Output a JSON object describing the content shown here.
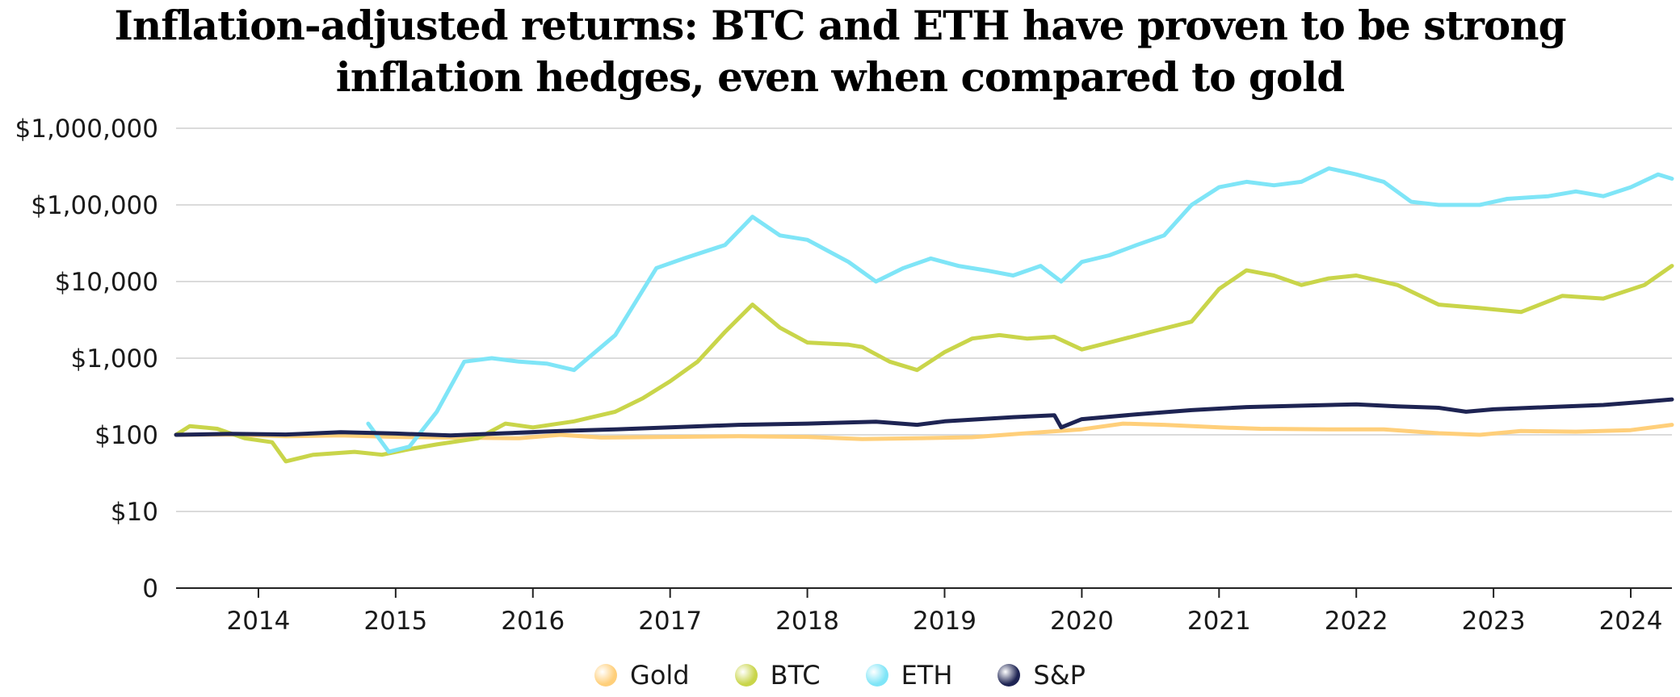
{
  "chart_data": {
    "type": "line",
    "title_lines": [
      "Inflation-adjusted returns: BTC and ETH have proven to be strong",
      "inflation hedges, even when compared to gold"
    ],
    "xlabel": "",
    "ylabel": "",
    "y_scale": "log",
    "y_ticks": [
      {
        "value": 0,
        "label": "0"
      },
      {
        "value": 10,
        "label": "$10"
      },
      {
        "value": 100,
        "label": "$100"
      },
      {
        "value": 1000,
        "label": "$1,000"
      },
      {
        "value": 10000,
        "label": "$10,000"
      },
      {
        "value": 100000,
        "label": "$1,00,000"
      },
      {
        "value": 1000000,
        "label": "$1,000,000"
      }
    ],
    "x_ticks": [
      "2014",
      "2015",
      "2016",
      "2017",
      "2018",
      "2019",
      "2020",
      "2021",
      "2022",
      "2023",
      "2024"
    ],
    "xlim": [
      2013.4,
      2024.3
    ],
    "grid": true,
    "legend_position": "bottom",
    "series": [
      {
        "name": "Gold",
        "color": "#ffcf7a",
        "points": [
          [
            2013.4,
            100
          ],
          [
            2013.8,
            101
          ],
          [
            2014.2,
            96
          ],
          [
            2014.6,
            98
          ],
          [
            2015.0,
            94
          ],
          [
            2015.4,
            92
          ],
          [
            2015.9,
            90
          ],
          [
            2016.2,
            100
          ],
          [
            2016.5,
            92
          ],
          [
            2017.0,
            94
          ],
          [
            2017.5,
            96
          ],
          [
            2018.0,
            94
          ],
          [
            2018.4,
            88
          ],
          [
            2018.8,
            90
          ],
          [
            2019.2,
            93
          ],
          [
            2019.6,
            105
          ],
          [
            2020.0,
            118
          ],
          [
            2020.3,
            140
          ],
          [
            2020.6,
            135
          ],
          [
            2021.0,
            125
          ],
          [
            2021.3,
            120
          ],
          [
            2021.8,
            118
          ],
          [
            2022.2,
            118
          ],
          [
            2022.6,
            105
          ],
          [
            2022.9,
            100
          ],
          [
            2023.2,
            112
          ],
          [
            2023.6,
            110
          ],
          [
            2024.0,
            115
          ],
          [
            2024.3,
            135
          ]
        ]
      },
      {
        "name": "BTC",
        "color": "#c9d54a",
        "points": [
          [
            2013.4,
            100
          ],
          [
            2013.5,
            130
          ],
          [
            2013.7,
            120
          ],
          [
            2013.9,
            90
          ],
          [
            2014.1,
            80
          ],
          [
            2014.2,
            45
          ],
          [
            2014.4,
            55
          ],
          [
            2014.7,
            60
          ],
          [
            2014.9,
            55
          ],
          [
            2015.1,
            65
          ],
          [
            2015.3,
            75
          ],
          [
            2015.6,
            90
          ],
          [
            2015.8,
            140
          ],
          [
            2016.0,
            125
          ],
          [
            2016.3,
            150
          ],
          [
            2016.6,
            200
          ],
          [
            2016.8,
            300
          ],
          [
            2017.0,
            500
          ],
          [
            2017.2,
            900
          ],
          [
            2017.4,
            2200
          ],
          [
            2017.6,
            5000
          ],
          [
            2017.8,
            2500
          ],
          [
            2018.0,
            1600
          ],
          [
            2018.3,
            1500
          ],
          [
            2018.4,
            1400
          ],
          [
            2018.6,
            900
          ],
          [
            2018.8,
            700
          ],
          [
            2019.0,
            1200
          ],
          [
            2019.2,
            1800
          ],
          [
            2019.4,
            2000
          ],
          [
            2019.6,
            1800
          ],
          [
            2019.8,
            1900
          ],
          [
            2020.0,
            1300
          ],
          [
            2020.2,
            1600
          ],
          [
            2020.5,
            2200
          ],
          [
            2020.8,
            3000
          ],
          [
            2021.0,
            8000
          ],
          [
            2021.2,
            14000
          ],
          [
            2021.4,
            12000
          ],
          [
            2021.6,
            9000
          ],
          [
            2021.8,
            11000
          ],
          [
            2022.0,
            12000
          ],
          [
            2022.3,
            9000
          ],
          [
            2022.6,
            5000
          ],
          [
            2022.9,
            4500
          ],
          [
            2023.2,
            4000
          ],
          [
            2023.5,
            6500
          ],
          [
            2023.8,
            6000
          ],
          [
            2024.1,
            9000
          ],
          [
            2024.3,
            16000
          ]
        ]
      },
      {
        "name": "ETH",
        "color": "#7fe5f7",
        "points": [
          [
            2014.8,
            140
          ],
          [
            2014.95,
            60
          ],
          [
            2015.1,
            70
          ],
          [
            2015.3,
            200
          ],
          [
            2015.5,
            900
          ],
          [
            2015.7,
            1000
          ],
          [
            2015.9,
            900
          ],
          [
            2016.1,
            850
          ],
          [
            2016.3,
            700
          ],
          [
            2016.6,
            2000
          ],
          [
            2016.9,
            15000
          ],
          [
            2017.1,
            20000
          ],
          [
            2017.4,
            30000
          ],
          [
            2017.6,
            70000
          ],
          [
            2017.8,
            40000
          ],
          [
            2018.0,
            35000
          ],
          [
            2018.3,
            18000
          ],
          [
            2018.5,
            10000
          ],
          [
            2018.7,
            15000
          ],
          [
            2018.9,
            20000
          ],
          [
            2019.1,
            16000
          ],
          [
            2019.3,
            14000
          ],
          [
            2019.5,
            12000
          ],
          [
            2019.7,
            16000
          ],
          [
            2019.85,
            10000
          ],
          [
            2020.0,
            18000
          ],
          [
            2020.2,
            22000
          ],
          [
            2020.4,
            30000
          ],
          [
            2020.6,
            40000
          ],
          [
            2020.8,
            100000
          ],
          [
            2021.0,
            170000
          ],
          [
            2021.2,
            200000
          ],
          [
            2021.4,
            180000
          ],
          [
            2021.6,
            200000
          ],
          [
            2021.8,
            300000
          ],
          [
            2022.0,
            250000
          ],
          [
            2022.2,
            200000
          ],
          [
            2022.4,
            110000
          ],
          [
            2022.6,
            100000
          ],
          [
            2022.9,
            100000
          ],
          [
            2023.1,
            120000
          ],
          [
            2023.4,
            130000
          ],
          [
            2023.6,
            150000
          ],
          [
            2023.8,
            130000
          ],
          [
            2024.0,
            170000
          ],
          [
            2024.2,
            250000
          ],
          [
            2024.3,
            220000
          ]
        ]
      },
      {
        "name": "S&P",
        "color": "#1e2453",
        "points": [
          [
            2013.4,
            100
          ],
          [
            2013.8,
            103
          ],
          [
            2014.2,
            101
          ],
          [
            2014.6,
            108
          ],
          [
            2015.0,
            104
          ],
          [
            2015.4,
            98
          ],
          [
            2015.8,
            105
          ],
          [
            2016.2,
            112
          ],
          [
            2016.6,
            118
          ],
          [
            2017.0,
            125
          ],
          [
            2017.5,
            135
          ],
          [
            2018.0,
            140
          ],
          [
            2018.5,
            148
          ],
          [
            2018.8,
            135
          ],
          [
            2019.0,
            150
          ],
          [
            2019.5,
            170
          ],
          [
            2019.8,
            180
          ],
          [
            2019.85,
            125
          ],
          [
            2020.0,
            160
          ],
          [
            2020.4,
            185
          ],
          [
            2020.8,
            210
          ],
          [
            2021.2,
            230
          ],
          [
            2021.6,
            240
          ],
          [
            2022.0,
            250
          ],
          [
            2022.3,
            235
          ],
          [
            2022.6,
            225
          ],
          [
            2022.8,
            200
          ],
          [
            2023.0,
            215
          ],
          [
            2023.4,
            230
          ],
          [
            2023.8,
            245
          ],
          [
            2024.1,
            270
          ],
          [
            2024.3,
            290
          ]
        ]
      }
    ]
  }
}
